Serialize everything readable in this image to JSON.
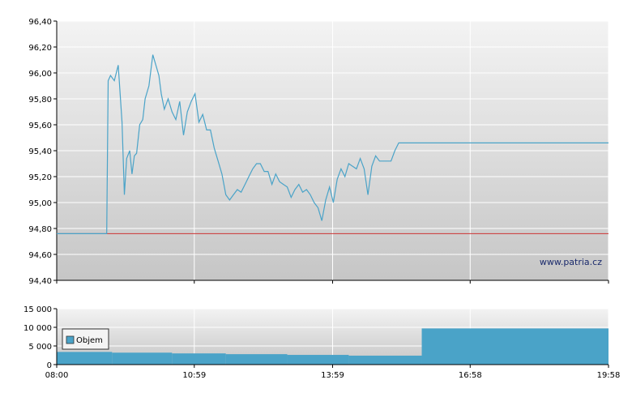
{
  "watermark": "www.patria.cz",
  "colors": {
    "price_line": "#4aa3c8",
    "reference_line": "#cc3333",
    "volume_bar": "#4aa3c8",
    "plot_bg_top": "#f2f2f2",
    "plot_bg_bottom": "#c8c8c8",
    "grid": "#ffffff"
  },
  "chart_data": [
    {
      "type": "line",
      "title": "",
      "xlabel": "",
      "ylabel": "",
      "ylim": [
        94.4,
        96.4
      ],
      "y_ticks": [
        "94,40",
        "94,60",
        "94,80",
        "95,00",
        "95,20",
        "95,40",
        "95,60",
        "95,80",
        "96,00",
        "96,20",
        "96,40"
      ],
      "y_tick_values": [
        94.4,
        94.6,
        94.8,
        95.0,
        95.2,
        95.4,
        95.6,
        95.8,
        96.0,
        96.2,
        96.4
      ],
      "x_domain": [
        "08:00",
        "19:58"
      ],
      "grid": true,
      "reference_value": 94.76,
      "series": [
        {
          "x": [
            "08:00",
            "09:05",
            "09:07",
            "09:10",
            "09:15",
            "09:20",
            "09:25",
            "09:28",
            "09:31",
            "09:35",
            "09:38",
            "09:41",
            "09:44",
            "09:48",
            "09:52",
            "09:55",
            "10:00",
            "10:05",
            "10:10",
            "10:13",
            "10:16",
            "10:20",
            "10:25",
            "10:30",
            "10:35",
            "10:40",
            "10:45",
            "10:50",
            "10:55",
            "11:00",
            "11:05",
            "11:10",
            "11:15",
            "11:20",
            "11:25",
            "11:30",
            "11:35",
            "11:40",
            "11:45",
            "11:50",
            "11:55",
            "12:00",
            "12:05",
            "12:10",
            "12:15",
            "12:20",
            "12:25",
            "12:30",
            "12:35",
            "12:40",
            "12:45",
            "12:50",
            "12:55",
            "13:00",
            "13:05",
            "13:10",
            "13:15",
            "13:20",
            "13:25",
            "13:30",
            "13:35",
            "13:40",
            "13:45",
            "13:50",
            "13:55",
            "14:00",
            "14:05",
            "14:10",
            "14:15",
            "14:20",
            "14:25",
            "14:30",
            "14:35",
            "14:40",
            "14:45",
            "14:50",
            "14:55",
            "15:00",
            "15:05",
            "15:10",
            "15:15",
            "15:20",
            "15:25",
            "15:30",
            "15:35",
            "15:40",
            "15:45",
            "15:50",
            "15:55",
            "16:00",
            "19:58"
          ],
          "y": [
            94.76,
            94.76,
            95.94,
            95.98,
            95.94,
            96.06,
            95.62,
            95.06,
            95.34,
            95.4,
            95.22,
            95.36,
            95.38,
            95.6,
            95.64,
            95.8,
            95.9,
            96.14,
            96.04,
            95.98,
            95.84,
            95.72,
            95.8,
            95.7,
            95.64,
            95.78,
            95.52,
            95.7,
            95.78,
            95.84,
            95.62,
            95.68,
            95.56,
            95.56,
            95.42,
            95.32,
            95.22,
            95.06,
            95.02,
            95.06,
            95.1,
            95.08,
            95.14,
            95.2,
            95.26,
            95.3,
            95.3,
            95.24,
            95.24,
            95.14,
            95.22,
            95.16,
            95.14,
            95.12,
            95.04,
            95.1,
            95.14,
            95.08,
            95.1,
            95.06,
            95.0,
            94.96,
            94.86,
            95.02,
            95.12,
            95.0,
            95.18,
            95.26,
            95.2,
            95.3,
            95.28,
            95.26,
            95.34,
            95.26,
            95.06,
            95.28,
            95.36,
            95.32,
            95.32,
            95.32,
            95.32,
            95.4,
            95.46,
            95.46,
            95.46,
            95.46,
            95.46,
            95.46,
            95.46,
            95.46,
            95.46
          ]
        }
      ]
    },
    {
      "type": "bar",
      "title": "",
      "xlabel": "",
      "ylabel": "",
      "ylim": [
        0,
        15000
      ],
      "y_ticks": [
        "0",
        "5 000",
        "10 000",
        "15 000"
      ],
      "y_tick_values": [
        0,
        5000,
        10000,
        15000
      ],
      "x_ticks": [
        "08:00",
        "10:59",
        "13:59",
        "16:58",
        "19:58"
      ],
      "x_domain": [
        "08:00",
        "19:58"
      ],
      "grid": true,
      "legend": [
        "Objem"
      ],
      "legend_position": "top-left",
      "series": [
        {
          "name": "Objem",
          "segments": [
            {
              "from": "08:00",
              "to": "09:12",
              "value": 3400
            },
            {
              "from": "09:12",
              "to": "10:30",
              "value": 3200
            },
            {
              "from": "10:30",
              "to": "11:40",
              "value": 3000
            },
            {
              "from": "11:40",
              "to": "13:00",
              "value": 2800
            },
            {
              "from": "13:00",
              "to": "14:20",
              "value": 2600
            },
            {
              "from": "14:20",
              "to": "15:55",
              "value": 2400
            },
            {
              "from": "15:55",
              "to": "19:58",
              "value": 9700
            }
          ]
        }
      ]
    }
  ]
}
